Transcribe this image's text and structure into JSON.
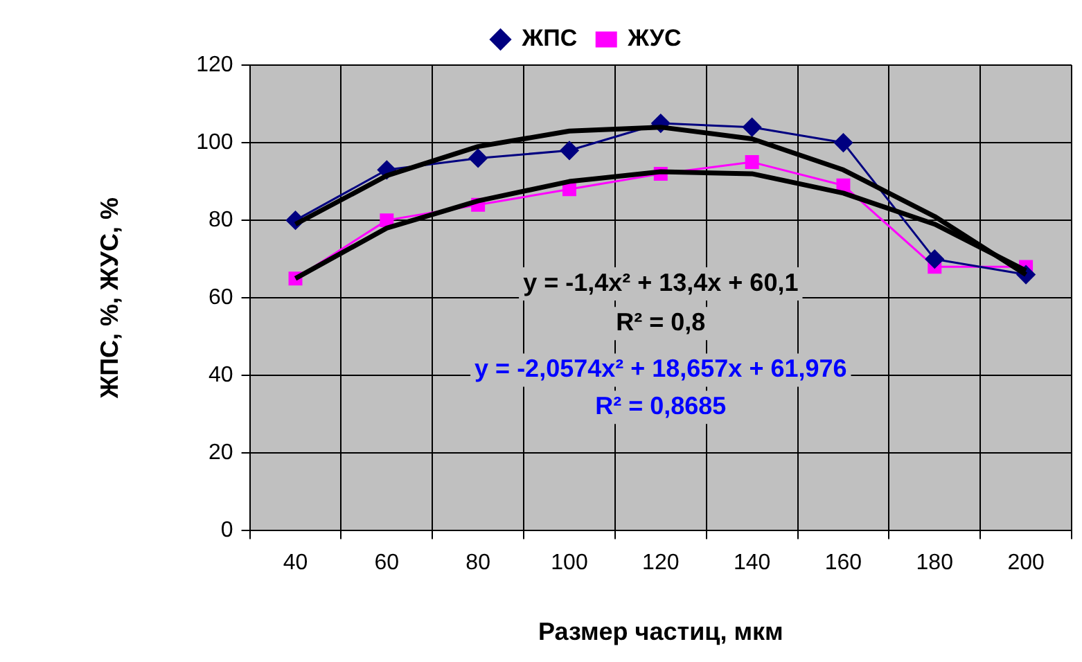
{
  "chart_data": {
    "type": "line",
    "xlabel": "Размер частиц, мкм",
    "ylabel": "ЖПС, %, ЖУС, %",
    "categories": [
      "40",
      "60",
      "80",
      "100",
      "120",
      "140",
      "160",
      "180",
      "200"
    ],
    "series": [
      {
        "name": "ЖПС",
        "color": "#000080",
        "marker": "diamond",
        "values": [
          80,
          93,
          96,
          98,
          105,
          104,
          100,
          70,
          66
        ]
      },
      {
        "name": "ЖУС",
        "color": "#ff00ff",
        "marker": "square",
        "values": [
          65,
          80,
          84,
          88,
          92,
          95,
          89,
          68,
          68
        ]
      },
      {
        "color": "#000000",
        "marker": "none",
        "values": [
          79,
          91.5,
          99,
          103,
          104,
          101,
          93,
          81,
          66
        ]
      },
      {
        "color": "#000000",
        "marker": "none",
        "values": [
          65,
          78,
          85,
          90,
          92.5,
          92,
          87,
          79,
          67
        ]
      }
    ],
    "annotations": [
      "y = -1,4x² + 13,4x + 60,1",
      "R² = 0,8",
      "y = -2,0574x² + 18,657x + 61,976",
      "R² = 0,8685"
    ],
    "ylim": [
      0,
      120
    ],
    "yticks": [
      0,
      20,
      40,
      60,
      80,
      100,
      120
    ],
    "grid": true,
    "legend": "top"
  }
}
